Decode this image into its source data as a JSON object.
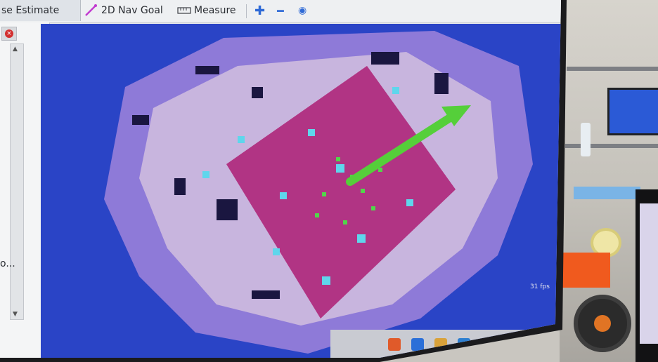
{
  "toolbar": {
    "pose_estimate_label": "se Estimate",
    "nav_goal_label": "2D Nav Goal",
    "measure_label": "Measure"
  },
  "sidebar": {
    "truncated_item": "o..."
  },
  "status": {
    "fps_text": "31 fps"
  },
  "colors": {
    "map_background": "#2b45c8",
    "known_space": "#c7b3dc",
    "costmap_red": "#d3324e",
    "goal_arrow": "#57d13c"
  }
}
